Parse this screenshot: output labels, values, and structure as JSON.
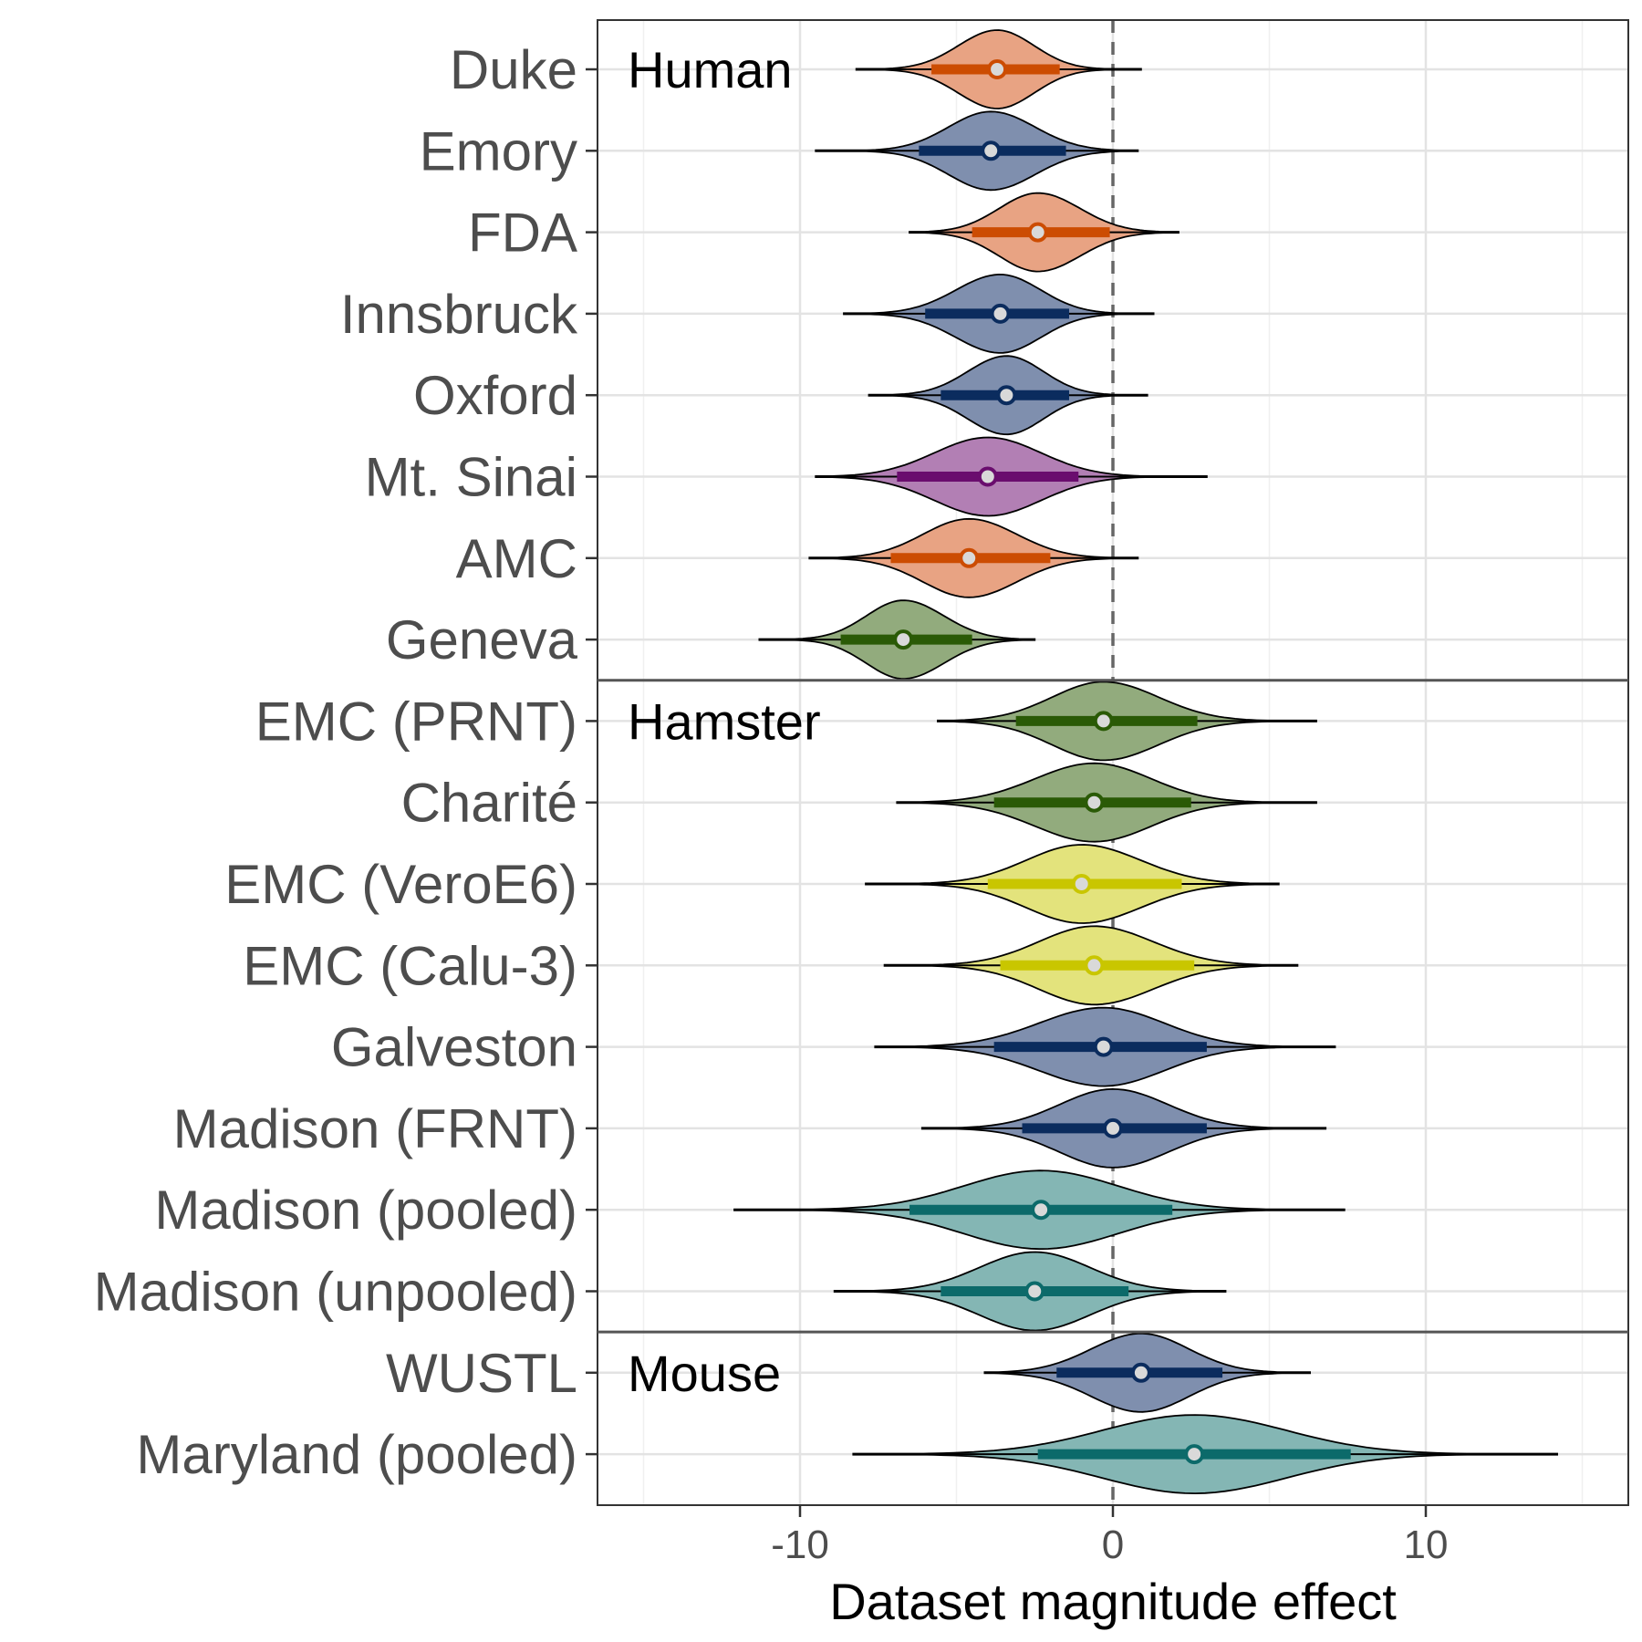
{
  "chart_data": {
    "type": "violin",
    "xlabel": "Dataset magnitude effect",
    "xlim": [
      -16.5,
      16.5
    ],
    "xticks": [
      -10,
      0,
      10
    ],
    "reference_line_x": 0,
    "grid": true,
    "panels": [
      {
        "label": "Human",
        "rows": [
          {
            "name": "Duke",
            "color": "#cc4c02",
            "fill": "#e8a383",
            "median": -3.7,
            "ci_low": -5.8,
            "ci_high": -1.7,
            "min": -8.2,
            "max": 0.9
          },
          {
            "name": "Emory",
            "color": "#0b2c5e",
            "fill": "#7f8fae",
            "median": -3.9,
            "ci_low": -6.2,
            "ci_high": -1.5,
            "min": -9.5,
            "max": 0.8
          },
          {
            "name": "FDA",
            "color": "#cc4c02",
            "fill": "#e8a383",
            "median": -2.4,
            "ci_low": -4.5,
            "ci_high": -0.1,
            "min": -6.5,
            "max": 2.1
          },
          {
            "name": "Innsbruck",
            "color": "#0b2c5e",
            "fill": "#7f8fae",
            "median": -3.6,
            "ci_low": -6.0,
            "ci_high": -1.4,
            "min": -8.6,
            "max": 1.3
          },
          {
            "name": "Oxford",
            "color": "#0b2c5e",
            "fill": "#7f8fae",
            "median": -3.4,
            "ci_low": -5.5,
            "ci_high": -1.4,
            "min": -7.8,
            "max": 1.1
          },
          {
            "name": "Mt. Sinai",
            "color": "#6a0d6e",
            "fill": "#b27fb4",
            "median": -4.0,
            "ci_low": -6.9,
            "ci_high": -1.1,
            "min": -9.5,
            "max": 3.0
          },
          {
            "name": "AMC",
            "color": "#cc4c02",
            "fill": "#e8a383",
            "median": -4.6,
            "ci_low": -7.1,
            "ci_high": -2.0,
            "min": -9.7,
            "max": 0.8
          },
          {
            "name": "Geneva",
            "color": "#2a5a06",
            "fill": "#92ab7d",
            "median": -6.7,
            "ci_low": -8.7,
            "ci_high": -4.5,
            "min": -11.3,
            "max": -2.5
          }
        ]
      },
      {
        "label": "Hamster",
        "rows": [
          {
            "name": "EMC (PRNT)",
            "color": "#2a5a06",
            "fill": "#92ab7d",
            "median": -0.3,
            "ci_low": -3.1,
            "ci_high": 2.7,
            "min": -5.6,
            "max": 6.5
          },
          {
            "name": "Charité",
            "color": "#2a5a06",
            "fill": "#92ab7d",
            "median": -0.6,
            "ci_low": -3.8,
            "ci_high": 2.5,
            "min": -6.9,
            "max": 6.5
          },
          {
            "name": "EMC (VeroE6)",
            "color": "#c9c600",
            "fill": "#e3e37c",
            "median": -1.0,
            "ci_low": -4.0,
            "ci_high": 2.2,
            "min": -7.9,
            "max": 5.3
          },
          {
            "name": "EMC (Calu-3)",
            "color": "#c9c600",
            "fill": "#e3e37c",
            "median": -0.6,
            "ci_low": -3.6,
            "ci_high": 2.6,
            "min": -7.3,
            "max": 5.9
          },
          {
            "name": "Galveston",
            "color": "#0b2c5e",
            "fill": "#7f8fae",
            "median": -0.3,
            "ci_low": -3.8,
            "ci_high": 3.0,
            "min": -7.6,
            "max": 7.1
          },
          {
            "name": "Madison (FRNT)",
            "color": "#0b2c5e",
            "fill": "#7f8fae",
            "median": 0.0,
            "ci_low": -2.9,
            "ci_high": 3.0,
            "min": -6.1,
            "max": 6.8
          },
          {
            "name": "Madison (pooled)",
            "color": "#0c6a6a",
            "fill": "#84b6b4",
            "median": -2.3,
            "ci_low": -6.5,
            "ci_high": 1.9,
            "min": -12.1,
            "max": 7.4
          },
          {
            "name": "Madison (unpooled)",
            "color": "#0c6a6a",
            "fill": "#84b6b4",
            "median": -2.5,
            "ci_low": -5.5,
            "ci_high": 0.5,
            "min": -8.9,
            "max": 3.6
          }
        ]
      },
      {
        "label": "Mouse",
        "rows": [
          {
            "name": "WUSTL",
            "color": "#0b2c5e",
            "fill": "#7f8fae",
            "median": 0.9,
            "ci_low": -1.8,
            "ci_high": 3.5,
            "min": -4.1,
            "max": 6.3
          },
          {
            "name": "Maryland (pooled)",
            "color": "#0c6a6a",
            "fill": "#84b6b4",
            "median": 2.6,
            "ci_low": -2.4,
            "ci_high": 7.6,
            "min": -8.3,
            "max": 14.2
          }
        ]
      }
    ]
  }
}
